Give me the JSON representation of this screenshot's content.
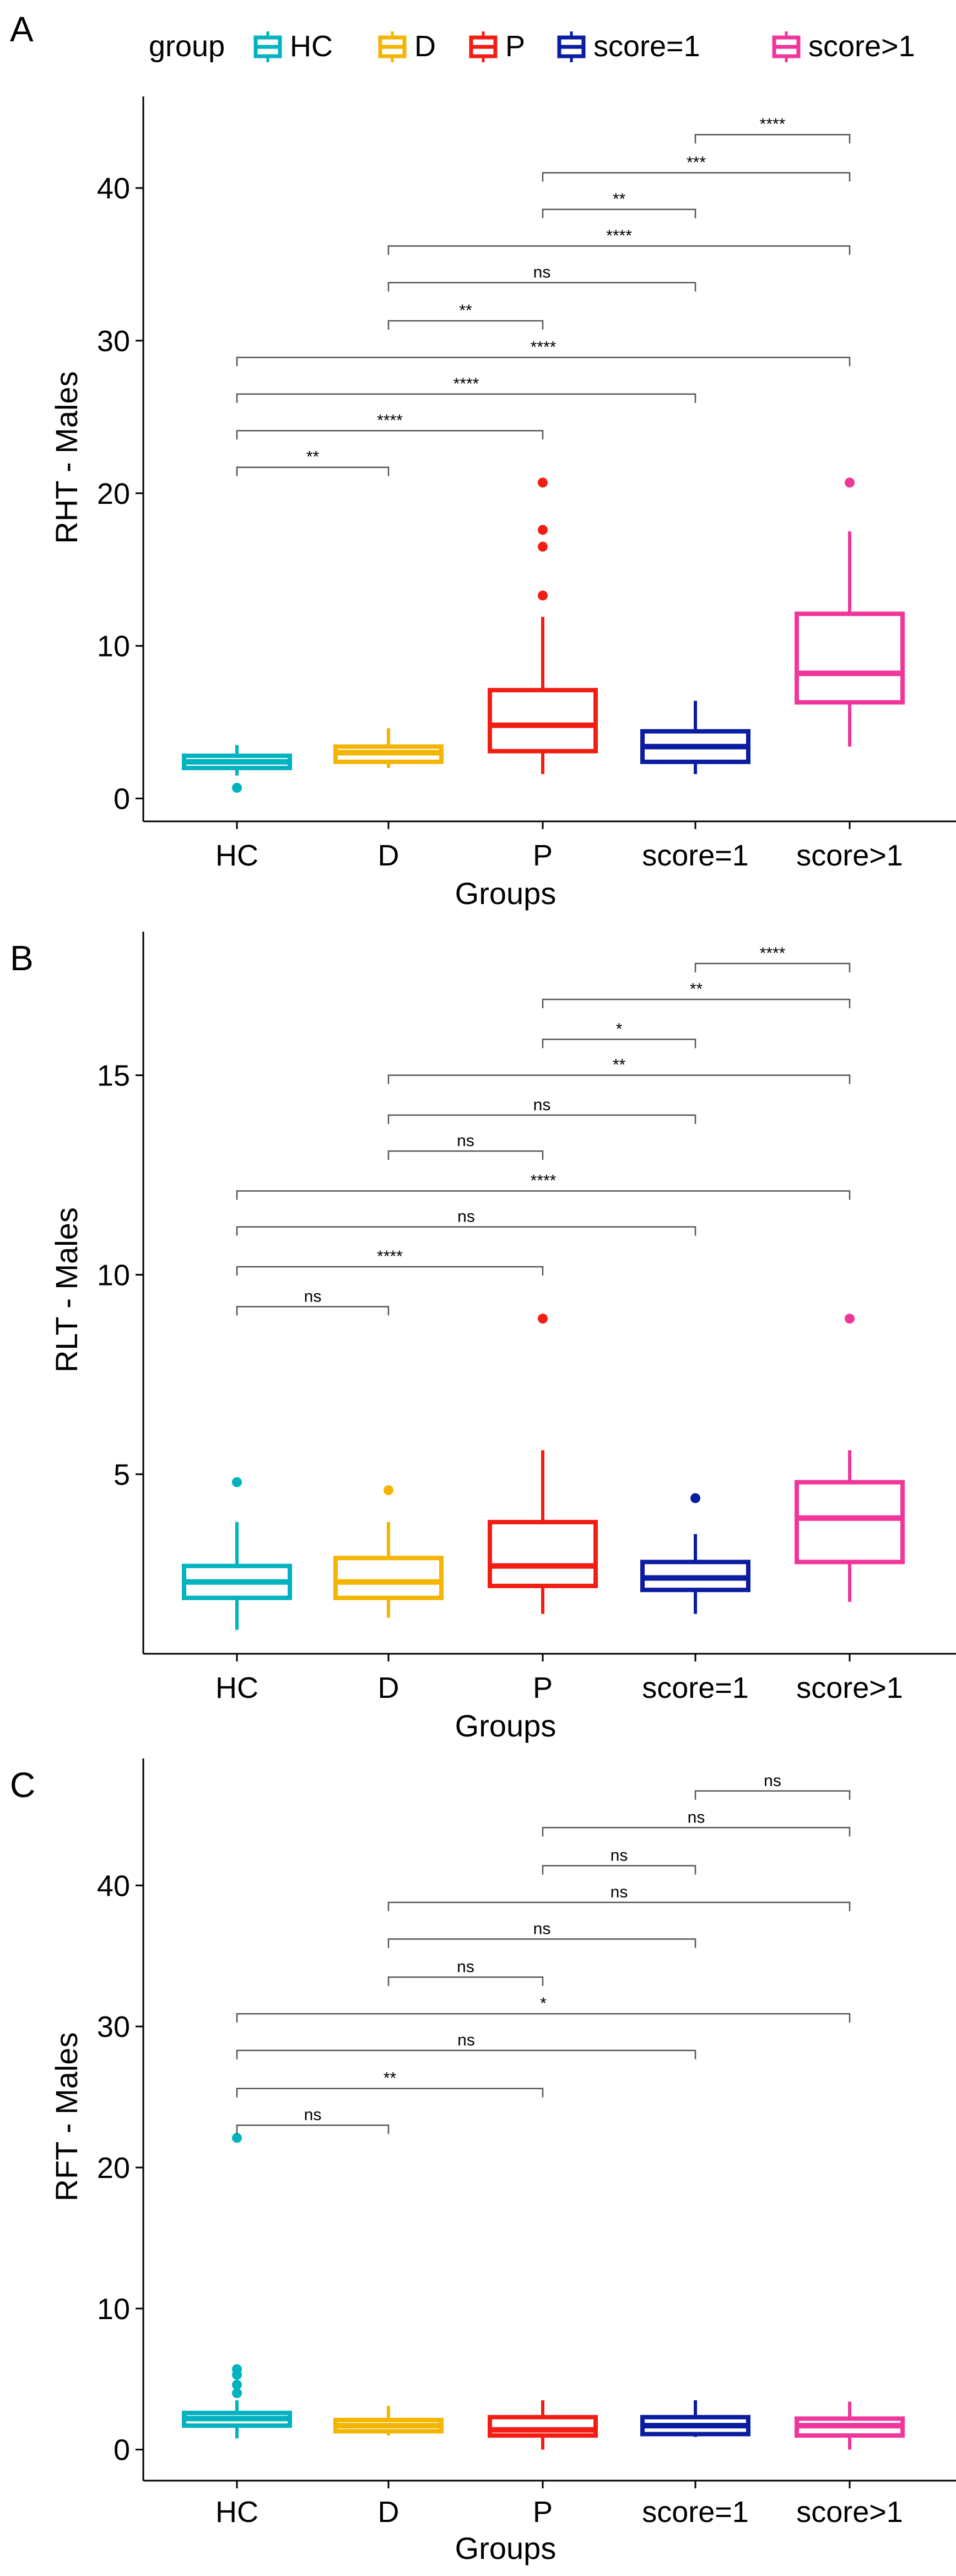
{
  "legend": {
    "title": "group",
    "items": [
      {
        "label": "HC",
        "color": "#00B3BF"
      },
      {
        "label": "D",
        "color": "#F3B500"
      },
      {
        "label": "P",
        "color": "#F21E14"
      },
      {
        "label": "score=1",
        "color": "#0A1CA0"
      },
      {
        "label": "score>1",
        "color": "#F0359B"
      }
    ]
  },
  "chart_data": [
    {
      "type": "boxplot",
      "panel_label": "A",
      "xlabel": "Groups",
      "ylabel": "RHT - Males",
      "categories": [
        "HC",
        "D",
        "P",
        "score=1",
        "score>1"
      ],
      "ylim": [
        -1.5,
        46
      ],
      "yticks": [
        0,
        10,
        20,
        30,
        40
      ],
      "boxes": [
        {
          "group": "HC",
          "lower_whisker": 1.5,
          "q1": 2.0,
          "median": 2.4,
          "q3": 2.8,
          "upper_whisker": 3.5,
          "outliers": [
            0.7
          ]
        },
        {
          "group": "D",
          "lower_whisker": 2.0,
          "q1": 2.4,
          "median": 3.0,
          "q3": 3.4,
          "upper_whisker": 4.6,
          "outliers": []
        },
        {
          "group": "P",
          "lower_whisker": 1.6,
          "q1": 3.1,
          "median": 4.8,
          "q3": 7.1,
          "upper_whisker": 11.9,
          "outliers": [
            13.3,
            16.5,
            17.6,
            20.7
          ]
        },
        {
          "group": "score=1",
          "lower_whisker": 1.6,
          "q1": 2.4,
          "median": 3.4,
          "q3": 4.4,
          "upper_whisker": 6.4,
          "outliers": []
        },
        {
          "group": "score>1",
          "lower_whisker": 3.4,
          "q1": 6.3,
          "median": 8.2,
          "q3": 12.1,
          "upper_whisker": 17.5,
          "outliers": [
            20.7
          ]
        }
      ],
      "comparisons": [
        {
          "from": "HC",
          "to": "D",
          "label": "**",
          "y": 21.7
        },
        {
          "from": "HC",
          "to": "P",
          "label": "****",
          "y": 24.1
        },
        {
          "from": "HC",
          "to": "score=1",
          "label": "****",
          "y": 26.5
        },
        {
          "from": "HC",
          "to": "score>1",
          "label": "****",
          "y": 28.9
        },
        {
          "from": "D",
          "to": "P",
          "label": "**",
          "y": 31.3
        },
        {
          "from": "D",
          "to": "score=1",
          "label": "ns",
          "y": 33.8
        },
        {
          "from": "D",
          "to": "score>1",
          "label": "****",
          "y": 36.2
        },
        {
          "from": "P",
          "to": "score=1",
          "label": "**",
          "y": 38.6
        },
        {
          "from": "P",
          "to": "score>1",
          "label": "***",
          "y": 41.0
        },
        {
          "from": "score=1",
          "to": "score>1",
          "label": "****",
          "y": 43.5
        }
      ]
    },
    {
      "type": "boxplot",
      "panel_label": "B",
      "xlabel": "Groups",
      "ylabel": "RLT - Males",
      "categories": [
        "HC",
        "D",
        "P",
        "score=1",
        "score>1"
      ],
      "ylim": [
        0.5,
        18.6
      ],
      "yticks": [
        5,
        10,
        15
      ],
      "boxes": [
        {
          "group": "HC",
          "lower_whisker": 1.1,
          "q1": 1.9,
          "median": 2.3,
          "q3": 2.7,
          "upper_whisker": 3.8,
          "outliers": [
            4.8
          ]
        },
        {
          "group": "D",
          "lower_whisker": 1.4,
          "q1": 1.9,
          "median": 2.3,
          "q3": 2.9,
          "upper_whisker": 3.8,
          "outliers": [
            4.6
          ]
        },
        {
          "group": "P",
          "lower_whisker": 1.5,
          "q1": 2.2,
          "median": 2.7,
          "q3": 3.8,
          "upper_whisker": 5.6,
          "outliers": [
            8.9
          ]
        },
        {
          "group": "score=1",
          "lower_whisker": 1.5,
          "q1": 2.1,
          "median": 2.4,
          "q3": 2.8,
          "upper_whisker": 3.5,
          "outliers": [
            4.4
          ]
        },
        {
          "group": "score>1",
          "lower_whisker": 1.8,
          "q1": 2.8,
          "median": 3.9,
          "q3": 4.8,
          "upper_whisker": 5.6,
          "outliers": [
            8.9
          ]
        }
      ],
      "comparisons": [
        {
          "from": "HC",
          "to": "D",
          "label": "ns",
          "y": 9.2
        },
        {
          "from": "HC",
          "to": "P",
          "label": "****",
          "y": 10.2
        },
        {
          "from": "HC",
          "to": "score=1",
          "label": "ns",
          "y": 11.2
        },
        {
          "from": "HC",
          "to": "score>1",
          "label": "****",
          "y": 12.1
        },
        {
          "from": "D",
          "to": "P",
          "label": "ns",
          "y": 13.1
        },
        {
          "from": "D",
          "to": "score=1",
          "label": "ns",
          "y": 14.0
        },
        {
          "from": "D",
          "to": "score>1",
          "label": "**",
          "y": 15.0
        },
        {
          "from": "P",
          "to": "score=1",
          "label": "*",
          "y": 15.9
        },
        {
          "from": "P",
          "to": "score>1",
          "label": "**",
          "y": 16.9
        },
        {
          "from": "score=1",
          "to": "score>1",
          "label": "****",
          "y": 17.8
        }
      ]
    },
    {
      "type": "boxplot",
      "panel_label": "C",
      "xlabel": "Groups",
      "ylabel": "RFT - Males",
      "categories": [
        "HC",
        "D",
        "P",
        "score=1",
        "score>1"
      ],
      "ylim": [
        -2.2,
        49
      ],
      "yticks": [
        0,
        10,
        20,
        30,
        40
      ],
      "boxes": [
        {
          "group": "HC",
          "lower_whisker": 0.8,
          "q1": 1.7,
          "median": 2.2,
          "q3": 2.6,
          "upper_whisker": 3.5,
          "outliers": [
            4.0,
            4.6,
            5.3,
            5.7,
            22.1
          ]
        },
        {
          "group": "D",
          "lower_whisker": 1.0,
          "q1": 1.3,
          "median": 1.7,
          "q3": 2.1,
          "upper_whisker": 3.1,
          "outliers": []
        },
        {
          "group": "P",
          "lower_whisker": 0.0,
          "q1": 1.0,
          "median": 1.4,
          "q3": 2.3,
          "upper_whisker": 3.5,
          "outliers": []
        },
        {
          "group": "score=1",
          "lower_whisker": 0.9,
          "q1": 1.1,
          "median": 1.7,
          "q3": 2.3,
          "upper_whisker": 3.5,
          "outliers": []
        },
        {
          "group": "score>1",
          "lower_whisker": 0.0,
          "q1": 1.0,
          "median": 1.7,
          "q3": 2.2,
          "upper_whisker": 3.4,
          "outliers": []
        }
      ],
      "comparisons": [
        {
          "from": "HC",
          "to": "D",
          "label": "ns",
          "y": 23.0
        },
        {
          "from": "HC",
          "to": "P",
          "label": "**",
          "y": 25.6
        },
        {
          "from": "HC",
          "to": "score=1",
          "label": "ns",
          "y": 28.3
        },
        {
          "from": "HC",
          "to": "score>1",
          "label": "*",
          "y": 30.9
        },
        {
          "from": "D",
          "to": "P",
          "label": "ns",
          "y": 33.5
        },
        {
          "from": "D",
          "to": "score=1",
          "label": "ns",
          "y": 36.2
        },
        {
          "from": "D",
          "to": "score>1",
          "label": "ns",
          "y": 38.8
        },
        {
          "from": "P",
          "to": "score=1",
          "label": "ns",
          "y": 41.4
        },
        {
          "from": "P",
          "to": "score>1",
          "label": "ns",
          "y": 44.1
        },
        {
          "from": "score=1",
          "to": "score>1",
          "label": "ns",
          "y": 46.7
        }
      ]
    }
  ]
}
